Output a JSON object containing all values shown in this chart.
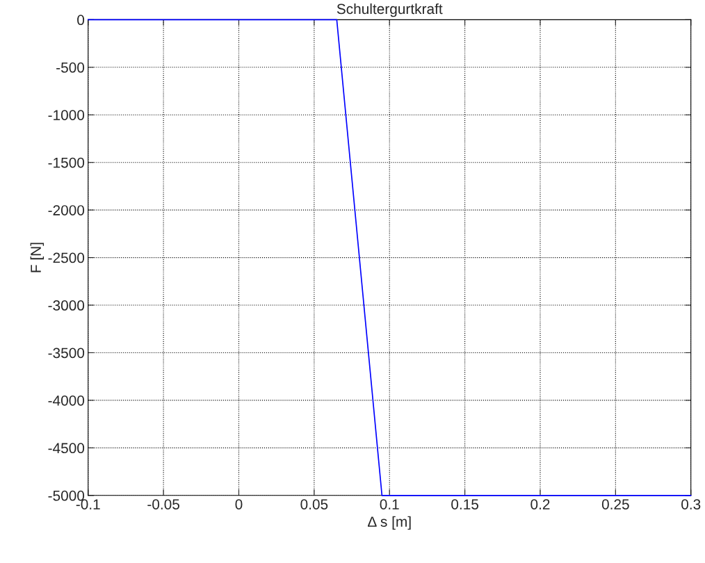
{
  "chart_data": {
    "type": "line",
    "title": "Schultergurtkraft",
    "xlabel": "Δ s [m]",
    "ylabel": "F [N]",
    "x": [
      -0.1,
      0.065,
      0.095,
      0.3
    ],
    "series": [
      {
        "color": "#0000ff",
        "values": [
          0,
          0,
          -5000,
          -5000
        ]
      }
    ],
    "xlim": [
      -0.1,
      0.3
    ],
    "xticks": [
      -0.1,
      -0.05,
      0,
      0.05,
      0.1,
      0.15,
      0.2,
      0.25,
      0.3
    ],
    "ylim": [
      -5000,
      0
    ],
    "yticks": [
      -5000,
      -4500,
      -4000,
      -3500,
      -3000,
      -2500,
      -2000,
      -1500,
      -1000,
      -500,
      0
    ],
    "grid": true,
    "line_style": "solid",
    "marker": "none"
  }
}
